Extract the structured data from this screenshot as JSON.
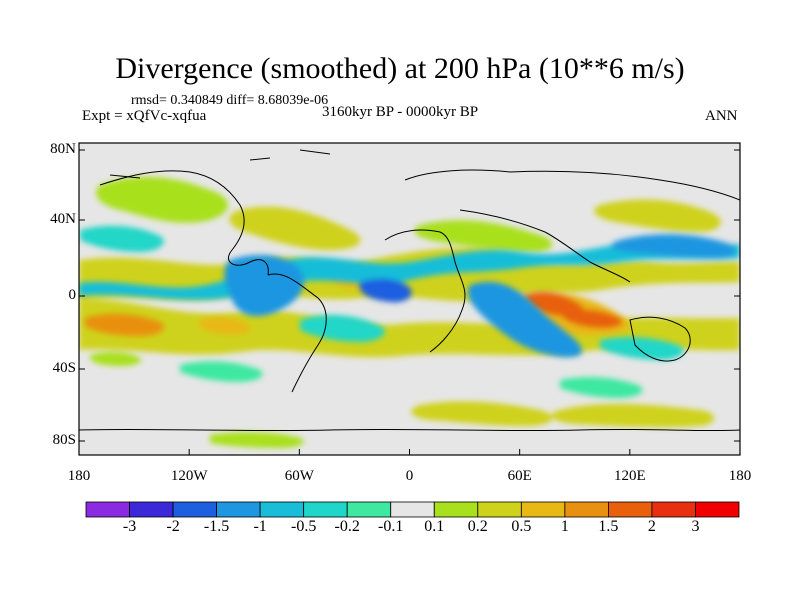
{
  "title": "Divergence (smoothed) at 200 hPa (10**6 m/s)",
  "stats": "rmsd= 0.340849 diff= 8.68039e-06",
  "experiment": "Expt = xQfVc-xqfua",
  "period": "3160kyr BP - 0000kyr BP",
  "season": "ANN",
  "map": {
    "y_ticks": [
      "80N",
      "40N",
      "0",
      "40S",
      "80S"
    ],
    "x_ticks": [
      "180",
      "120W",
      "60W",
      "0",
      "60E",
      "120E",
      "180"
    ],
    "background_color": "#e6e6e6"
  },
  "colorbar": {
    "labels": [
      "-3",
      "-2",
      "-1.5",
      "-1",
      "-0.5",
      "-0.2",
      "-0.1",
      "0.1",
      "0.2",
      "0.5",
      "1",
      "1.5",
      "2",
      "3"
    ],
    "colors": [
      "#8a2be2",
      "#3c28d9",
      "#1e5fe0",
      "#1f96e0",
      "#19bdd8",
      "#20d6c8",
      "#3ee8a0",
      "#e6e6e6",
      "#a9e01e",
      "#cfd21a",
      "#e8b815",
      "#e89010",
      "#e8600c",
      "#e83010",
      "#f00000"
    ]
  }
}
